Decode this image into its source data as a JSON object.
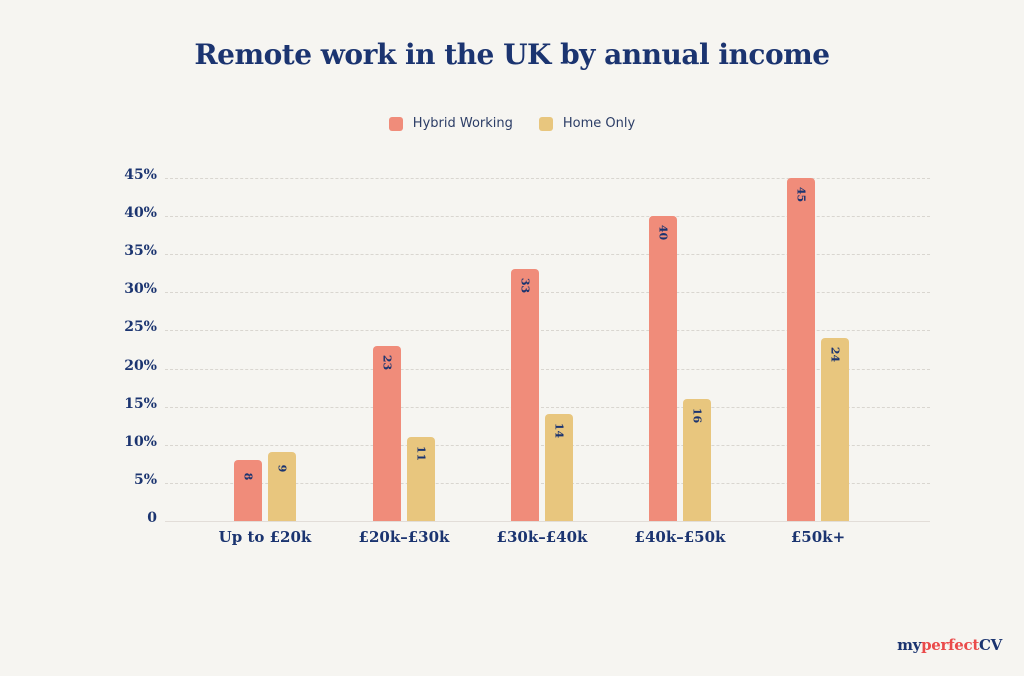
{
  "title": "Remote work in the UK by annual income",
  "legend": [
    {
      "label": "Hybrid Working",
      "color": "#f08c7a"
    },
    {
      "label": "Home Only",
      "color": "#e8c67e"
    }
  ],
  "logo": {
    "part1": "my",
    "part2": "perfect",
    "part3": "CV",
    "color1": "#1b3470",
    "color2": "#ea4a4a"
  },
  "chart_data": {
    "type": "bar",
    "title": "Remote work in the UK by annual income",
    "xlabel": "",
    "ylabel": "",
    "categories": [
      "Up to £20k",
      "£20k–£30k",
      "£30k–£40k",
      "£40k–£50k",
      "£50k+"
    ],
    "series": [
      {
        "name": "Hybrid Working",
        "values": [
          8,
          23,
          33,
          40,
          45
        ],
        "color": "#f08c7a"
      },
      {
        "name": "Home Only",
        "values": [
          9,
          11,
          14,
          16,
          24
        ],
        "color": "#e8c67e"
      }
    ],
    "ylim": [
      0,
      45
    ],
    "yticks": [
      "0",
      "5%",
      "10%",
      "15%",
      "20%",
      "25%",
      "30%",
      "35%",
      "40%",
      "45%"
    ],
    "grid": true,
    "legend_position": "top"
  }
}
